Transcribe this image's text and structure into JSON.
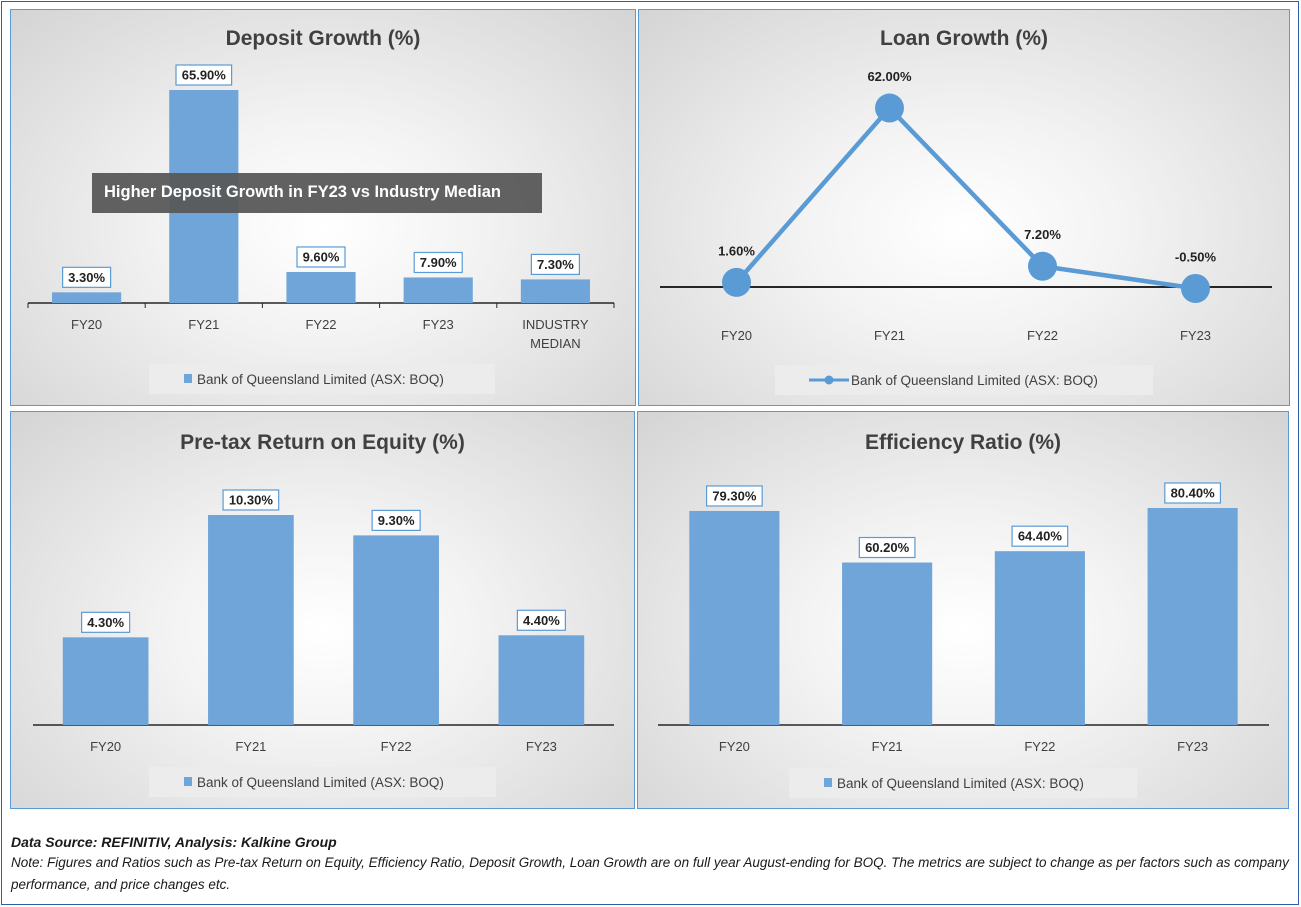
{
  "chart_data": [
    {
      "type": "bar",
      "title": "Deposit Growth (%)",
      "categories": [
        "FY20",
        "FY21",
        "FY22",
        "FY23",
        "INDUSTRY MEDIAN"
      ],
      "series": [
        {
          "name": "Bank of Queensland Limited (ASX: BOQ)",
          "values": [
            3.3,
            65.9,
            9.6,
            7.9,
            7.3
          ]
        }
      ],
      "data_labels": [
        "3.30%",
        "65.90%",
        "9.60%",
        "7.90%",
        "7.30%"
      ],
      "annotation": "Higher Deposit Growth in FY23 vs Industry Median",
      "ylim": [
        0,
        70
      ],
      "legend": "bottom",
      "grid": false,
      "color": "#6fa5d8"
    },
    {
      "type": "line",
      "title": "Loan Growth (%)",
      "categories": [
        "FY20",
        "FY21",
        "FY22",
        "FY23"
      ],
      "series": [
        {
          "name": "Bank of Queensland Limited (ASX: BOQ)",
          "values": [
            1.6,
            62.0,
            7.2,
            -0.5
          ]
        }
      ],
      "data_labels": [
        "1.60%",
        "62.00%",
        "7.20%",
        "-0.50%"
      ],
      "ylim": [
        -5,
        70
      ],
      "legend": "bottom",
      "grid": false,
      "color": "#5b9bd5"
    },
    {
      "type": "bar",
      "title": "Pre-tax Return on Equity (%)",
      "categories": [
        "FY20",
        "FY21",
        "FY22",
        "FY23"
      ],
      "series": [
        {
          "name": "Bank of Queensland Limited (ASX: BOQ)",
          "values": [
            4.3,
            10.3,
            9.3,
            4.4
          ]
        }
      ],
      "data_labels": [
        "4.30%",
        "10.30%",
        "9.30%",
        "4.40%"
      ],
      "ylim": [
        0,
        12
      ],
      "legend": "bottom",
      "grid": false,
      "color": "#6fa5d8"
    },
    {
      "type": "bar",
      "title": "Efficiency Ratio (%)",
      "categories": [
        "FY20",
        "FY21",
        "FY22",
        "FY23"
      ],
      "series": [
        {
          "name": "Bank of Queensland Limited (ASX: BOQ)",
          "values": [
            79.3,
            60.2,
            64.4,
            80.4
          ]
        }
      ],
      "data_labels": [
        "79.30%",
        "60.20%",
        "64.40%",
        "80.40%"
      ],
      "ylim": [
        0,
        90
      ],
      "legend": "bottom",
      "grid": false,
      "color": "#6fa5d8"
    }
  ],
  "footer": {
    "source": "Data Source: REFINITIV, Analysis: Kalkine Group",
    "note": "Note: Figures and Ratios such as Pre-tax Return on Equity, Efficiency Ratio, Deposit Growth, Loan Growth are on full year August-ending for BOQ. The metrics are subject to change as per factors such as company performance, and price changes etc."
  }
}
